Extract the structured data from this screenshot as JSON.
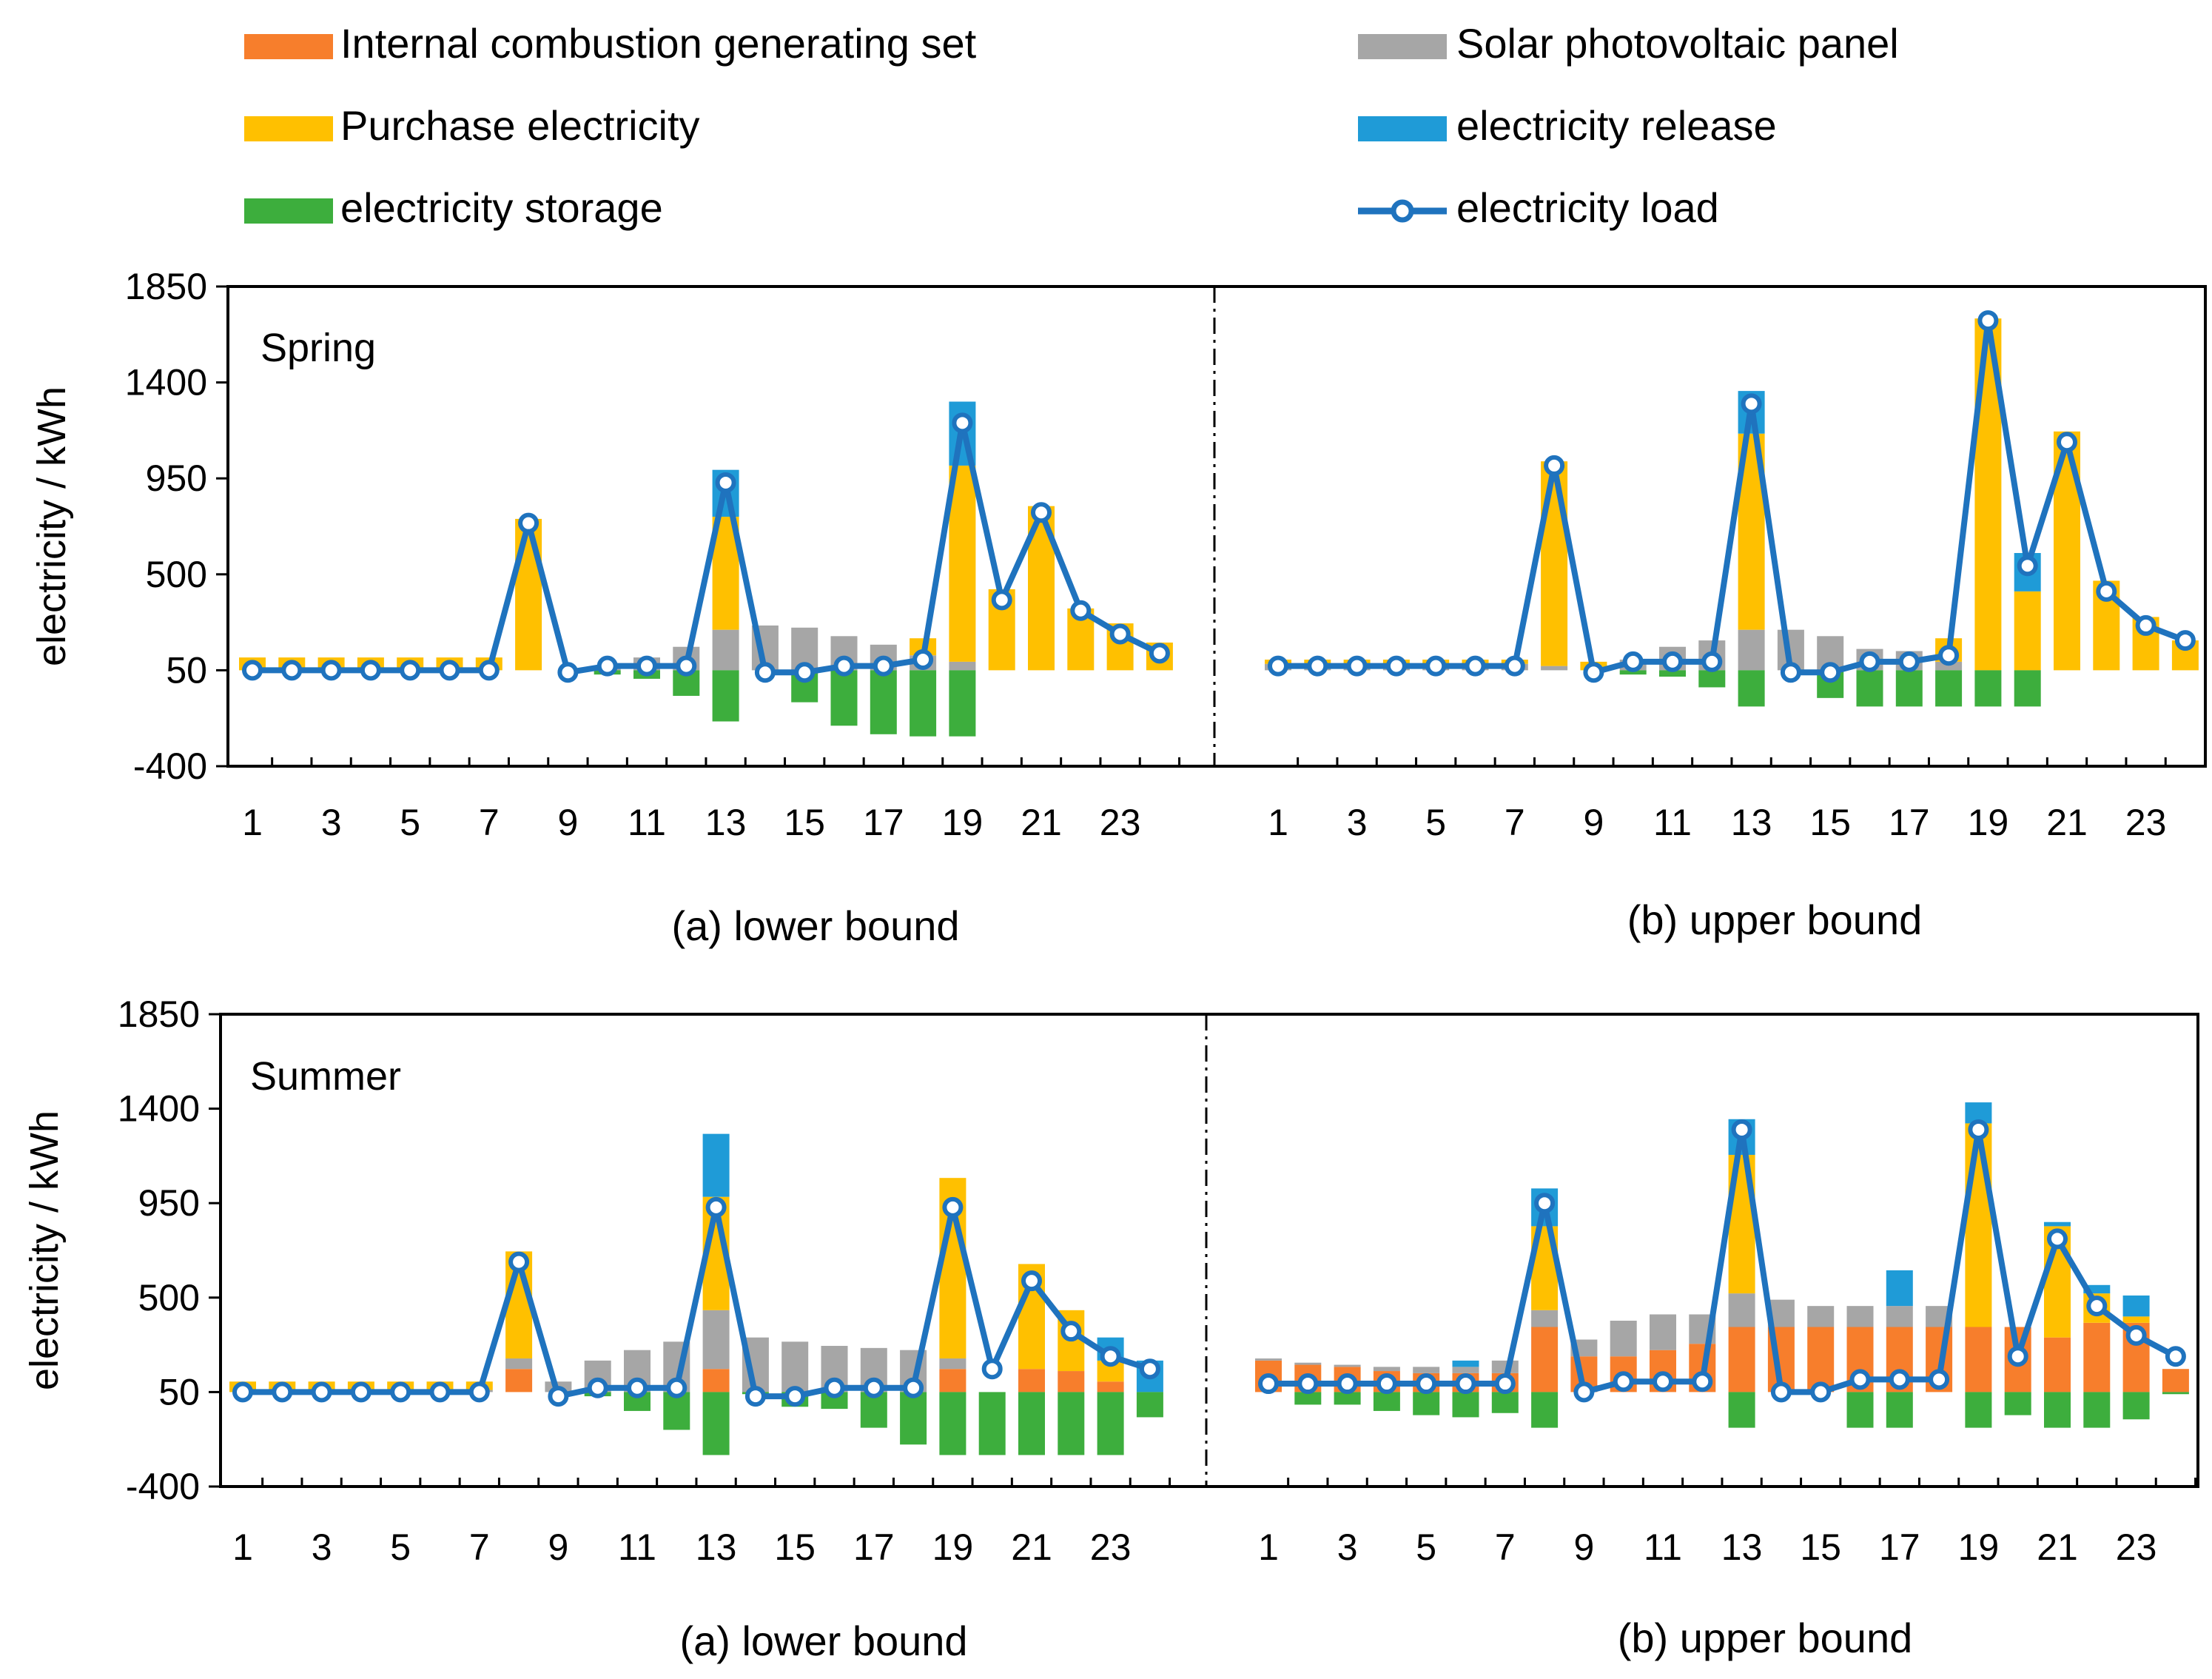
{
  "legend": {
    "items": [
      {
        "key": "ice",
        "label": "Internal combustion generating set",
        "color": "#F77E2C",
        "kind": "bar"
      },
      {
        "key": "pv",
        "label": "Solar photovoltaic panel",
        "color": "#A6A6A6",
        "kind": "bar"
      },
      {
        "key": "buy",
        "label": "Purchase electricity",
        "color": "#FFC000",
        "kind": "bar"
      },
      {
        "key": "rel",
        "label": "electricity release",
        "color": "#1F9BD7",
        "kind": "bar"
      },
      {
        "key": "sto",
        "label": "electricity storage",
        "color": "#3DAE3D",
        "kind": "bar"
      },
      {
        "key": "load",
        "label": "electricity load",
        "color": "#1F73BE",
        "kind": "line"
      }
    ]
  },
  "panels": [
    {
      "season": "Spring",
      "ylabel": "electricity / kWh",
      "subtitles": [
        "(a) lower bound",
        "(b) upper bound"
      ]
    },
    {
      "season": "Summer",
      "ylabel": "electricity / kWh",
      "subtitles": [
        "(a) lower bound",
        "(b) upper bound"
      ]
    }
  ],
  "chart_data": [
    {
      "type": "bar",
      "title": "Spring — (a) lower bound",
      "xlabel": "",
      "ylabel": "electricity / kWh",
      "x": [
        1,
        2,
        3,
        4,
        5,
        6,
        7,
        8,
        9,
        10,
        11,
        12,
        13,
        14,
        15,
        16,
        17,
        18,
        19,
        20,
        21,
        22,
        23,
        24
      ],
      "xticks": [
        1,
        3,
        5,
        7,
        9,
        11,
        13,
        15,
        17,
        19,
        21,
        23
      ],
      "yticks": [
        1850,
        1400,
        950,
        500,
        50,
        -400
      ],
      "ylim": [
        -400,
        1850
      ],
      "series": [
        {
          "name": "Internal combustion generating set",
          "values": [
            0,
            0,
            0,
            0,
            0,
            0,
            0,
            0,
            0,
            0,
            0,
            0,
            0,
            0,
            0,
            0,
            0,
            0,
            0,
            0,
            0,
            0,
            0,
            0
          ]
        },
        {
          "name": "Solar photovoltaic panel",
          "values": [
            0,
            0,
            0,
            0,
            0,
            0,
            0,
            0,
            0,
            20,
            60,
            110,
            190,
            210,
            200,
            160,
            120,
            70,
            40,
            0,
            0,
            0,
            0,
            0
          ]
        },
        {
          "name": "Purchase electricity",
          "values": [
            60,
            60,
            60,
            60,
            60,
            60,
            60,
            710,
            0,
            0,
            0,
            0,
            530,
            0,
            0,
            0,
            0,
            80,
            920,
            380,
            770,
            290,
            220,
            130
          ]
        },
        {
          "name": "electricity release",
          "values": [
            0,
            0,
            0,
            0,
            0,
            0,
            0,
            0,
            0,
            0,
            0,
            0,
            220,
            0,
            0,
            0,
            0,
            0,
            300,
            0,
            0,
            0,
            0,
            0
          ]
        },
        {
          "name": "electricity storage",
          "values": [
            0,
            0,
            0,
            0,
            0,
            0,
            0,
            0,
            0,
            -20,
            -40,
            -120,
            -240,
            0,
            -150,
            -260,
            -300,
            -310,
            -310,
            0,
            0,
            0,
            0,
            0
          ]
        },
        {
          "name": "electricity load",
          "values": [
            50,
            50,
            50,
            50,
            50,
            50,
            50,
            740,
            40,
            70,
            70,
            70,
            930,
            40,
            40,
            70,
            70,
            100,
            1210,
            380,
            790,
            330,
            220,
            130
          ]
        }
      ]
    },
    {
      "type": "bar",
      "title": "Spring — (b) upper bound",
      "xlabel": "",
      "ylabel": "electricity / kWh",
      "x": [
        1,
        2,
        3,
        4,
        5,
        6,
        7,
        8,
        9,
        10,
        11,
        12,
        13,
        14,
        15,
        16,
        17,
        18,
        19,
        20,
        21,
        22,
        23,
        24
      ],
      "xticks": [
        1,
        3,
        5,
        7,
        9,
        11,
        13,
        15,
        17,
        19,
        21,
        23
      ],
      "yticks": [
        1850,
        1400,
        950,
        500,
        50,
        -400
      ],
      "ylim": [
        -400,
        1850
      ],
      "series": [
        {
          "name": "Internal combustion generating set",
          "values": [
            0,
            0,
            0,
            0,
            0,
            0,
            0,
            0,
            0,
            0,
            0,
            0,
            0,
            0,
            0,
            0,
            0,
            0,
            0,
            0,
            0,
            0,
            0,
            0
          ]
        },
        {
          "name": "Solar photovoltaic panel",
          "values": [
            30,
            30,
            30,
            30,
            30,
            30,
            30,
            20,
            0,
            50,
            110,
            140,
            190,
            190,
            160,
            100,
            90,
            40,
            0,
            0,
            0,
            0,
            0,
            0
          ]
        },
        {
          "name": "Purchase electricity",
          "values": [
            20,
            20,
            20,
            20,
            20,
            20,
            20,
            960,
            40,
            0,
            0,
            0,
            920,
            0,
            0,
            0,
            0,
            110,
            1650,
            370,
            1120,
            420,
            250,
            140
          ]
        },
        {
          "name": "electricity release",
          "values": [
            0,
            0,
            0,
            0,
            0,
            0,
            0,
            0,
            0,
            0,
            0,
            0,
            200,
            0,
            0,
            0,
            0,
            0,
            0,
            180,
            0,
            0,
            0,
            0
          ]
        },
        {
          "name": "electricity storage",
          "values": [
            0,
            0,
            0,
            0,
            0,
            0,
            0,
            0,
            0,
            -20,
            -30,
            -80,
            -170,
            0,
            -130,
            -170,
            -170,
            -170,
            -170,
            -170,
            0,
            0,
            0,
            0
          ]
        },
        {
          "name": "electricity load",
          "values": [
            70,
            70,
            70,
            70,
            70,
            70,
            70,
            1010,
            40,
            90,
            90,
            90,
            1300,
            40,
            40,
            90,
            90,
            120,
            1690,
            540,
            1120,
            420,
            260,
            190
          ]
        }
      ]
    },
    {
      "type": "bar",
      "title": "Summer — (a) lower bound",
      "xlabel": "",
      "ylabel": "electricity / kWh",
      "x": [
        1,
        2,
        3,
        4,
        5,
        6,
        7,
        8,
        9,
        10,
        11,
        12,
        13,
        14,
        15,
        16,
        17,
        18,
        19,
        20,
        21,
        22,
        23,
        24
      ],
      "xticks": [
        1,
        3,
        5,
        7,
        9,
        11,
        13,
        15,
        17,
        19,
        21,
        23
      ],
      "yticks": [
        1850,
        1400,
        950,
        500,
        50,
        -400
      ],
      "ylim": [
        -400,
        1850
      ],
      "series": [
        {
          "name": "Internal combustion generating set",
          "values": [
            0,
            0,
            0,
            0,
            0,
            0,
            0,
            110,
            0,
            0,
            0,
            0,
            110,
            0,
            0,
            0,
            0,
            0,
            110,
            0,
            110,
            100,
            50,
            0
          ]
        },
        {
          "name": "Solar photovoltaic panel",
          "values": [
            0,
            0,
            0,
            0,
            0,
            0,
            10,
            50,
            50,
            150,
            200,
            240,
            280,
            260,
            240,
            220,
            210,
            200,
            50,
            0,
            0,
            0,
            0,
            0
          ]
        },
        {
          "name": "Purchase electricity",
          "values": [
            50,
            50,
            50,
            50,
            50,
            50,
            40,
            510,
            0,
            0,
            0,
            0,
            540,
            0,
            0,
            0,
            0,
            0,
            860,
            0,
            500,
            290,
            100,
            0
          ]
        },
        {
          "name": "electricity release",
          "values": [
            0,
            0,
            0,
            0,
            0,
            0,
            0,
            0,
            0,
            0,
            0,
            0,
            300,
            0,
            0,
            0,
            0,
            0,
            0,
            0,
            0,
            0,
            110,
            150
          ]
        },
        {
          "name": "electricity storage",
          "values": [
            0,
            0,
            0,
            0,
            0,
            0,
            0,
            0,
            0,
            -20,
            -90,
            -180,
            -300,
            -10,
            -70,
            -80,
            -170,
            -250,
            -300,
            -300,
            -300,
            -300,
            -300,
            -120
          ]
        },
        {
          "name": "electricity load",
          "values": [
            50,
            50,
            50,
            50,
            50,
            50,
            50,
            670,
            30,
            70,
            70,
            70,
            930,
            30,
            30,
            70,
            70,
            70,
            930,
            160,
            580,
            340,
            220,
            160
          ]
        }
      ]
    },
    {
      "type": "bar",
      "title": "Summer — (b) upper bound",
      "xlabel": "",
      "ylabel": "electricity / kWh",
      "x": [
        1,
        2,
        3,
        4,
        5,
        6,
        7,
        8,
        9,
        10,
        11,
        12,
        13,
        14,
        15,
        16,
        17,
        18,
        19,
        20,
        21,
        22,
        23,
        24
      ],
      "xticks": [
        1,
        3,
        5,
        7,
        9,
        11,
        13,
        15,
        17,
        19,
        21,
        23
      ],
      "yticks": [
        1850,
        1400,
        950,
        500,
        50,
        -400
      ],
      "ylim": [
        -400,
        1850
      ],
      "series": [
        {
          "name": "Internal combustion generating set",
          "values": [
            150,
            130,
            120,
            100,
            90,
            90,
            90,
            310,
            170,
            170,
            200,
            230,
            310,
            310,
            310,
            310,
            310,
            310,
            310,
            310,
            260,
            330,
            330,
            110
          ]
        },
        {
          "name": "Solar photovoltaic panel",
          "values": [
            10,
            10,
            10,
            20,
            30,
            30,
            60,
            80,
            80,
            170,
            170,
            140,
            160,
            130,
            100,
            100,
            100,
            100,
            0,
            0,
            0,
            0,
            0,
            0
          ]
        },
        {
          "name": "Purchase electricity",
          "values": [
            0,
            0,
            0,
            0,
            0,
            0,
            0,
            400,
            0,
            0,
            0,
            0,
            660,
            0,
            0,
            0,
            0,
            0,
            970,
            0,
            530,
            140,
            30,
            0
          ]
        },
        {
          "name": "electricity release",
          "values": [
            0,
            0,
            0,
            0,
            0,
            30,
            0,
            180,
            0,
            0,
            0,
            0,
            170,
            0,
            0,
            0,
            170,
            0,
            100,
            0,
            20,
            40,
            100,
            0
          ]
        },
        {
          "name": "electricity storage",
          "values": [
            0,
            -60,
            -60,
            -90,
            -110,
            -120,
            -100,
            -170,
            0,
            0,
            0,
            0,
            -170,
            0,
            0,
            -170,
            -170,
            0,
            -170,
            -110,
            -170,
            -170,
            -130,
            -10
          ]
        },
        {
          "name": "electricity load",
          "values": [
            90,
            90,
            90,
            90,
            90,
            90,
            90,
            950,
            50,
            100,
            100,
            100,
            1300,
            50,
            50,
            110,
            110,
            110,
            1300,
            220,
            780,
            460,
            320,
            220
          ]
        }
      ]
    }
  ]
}
